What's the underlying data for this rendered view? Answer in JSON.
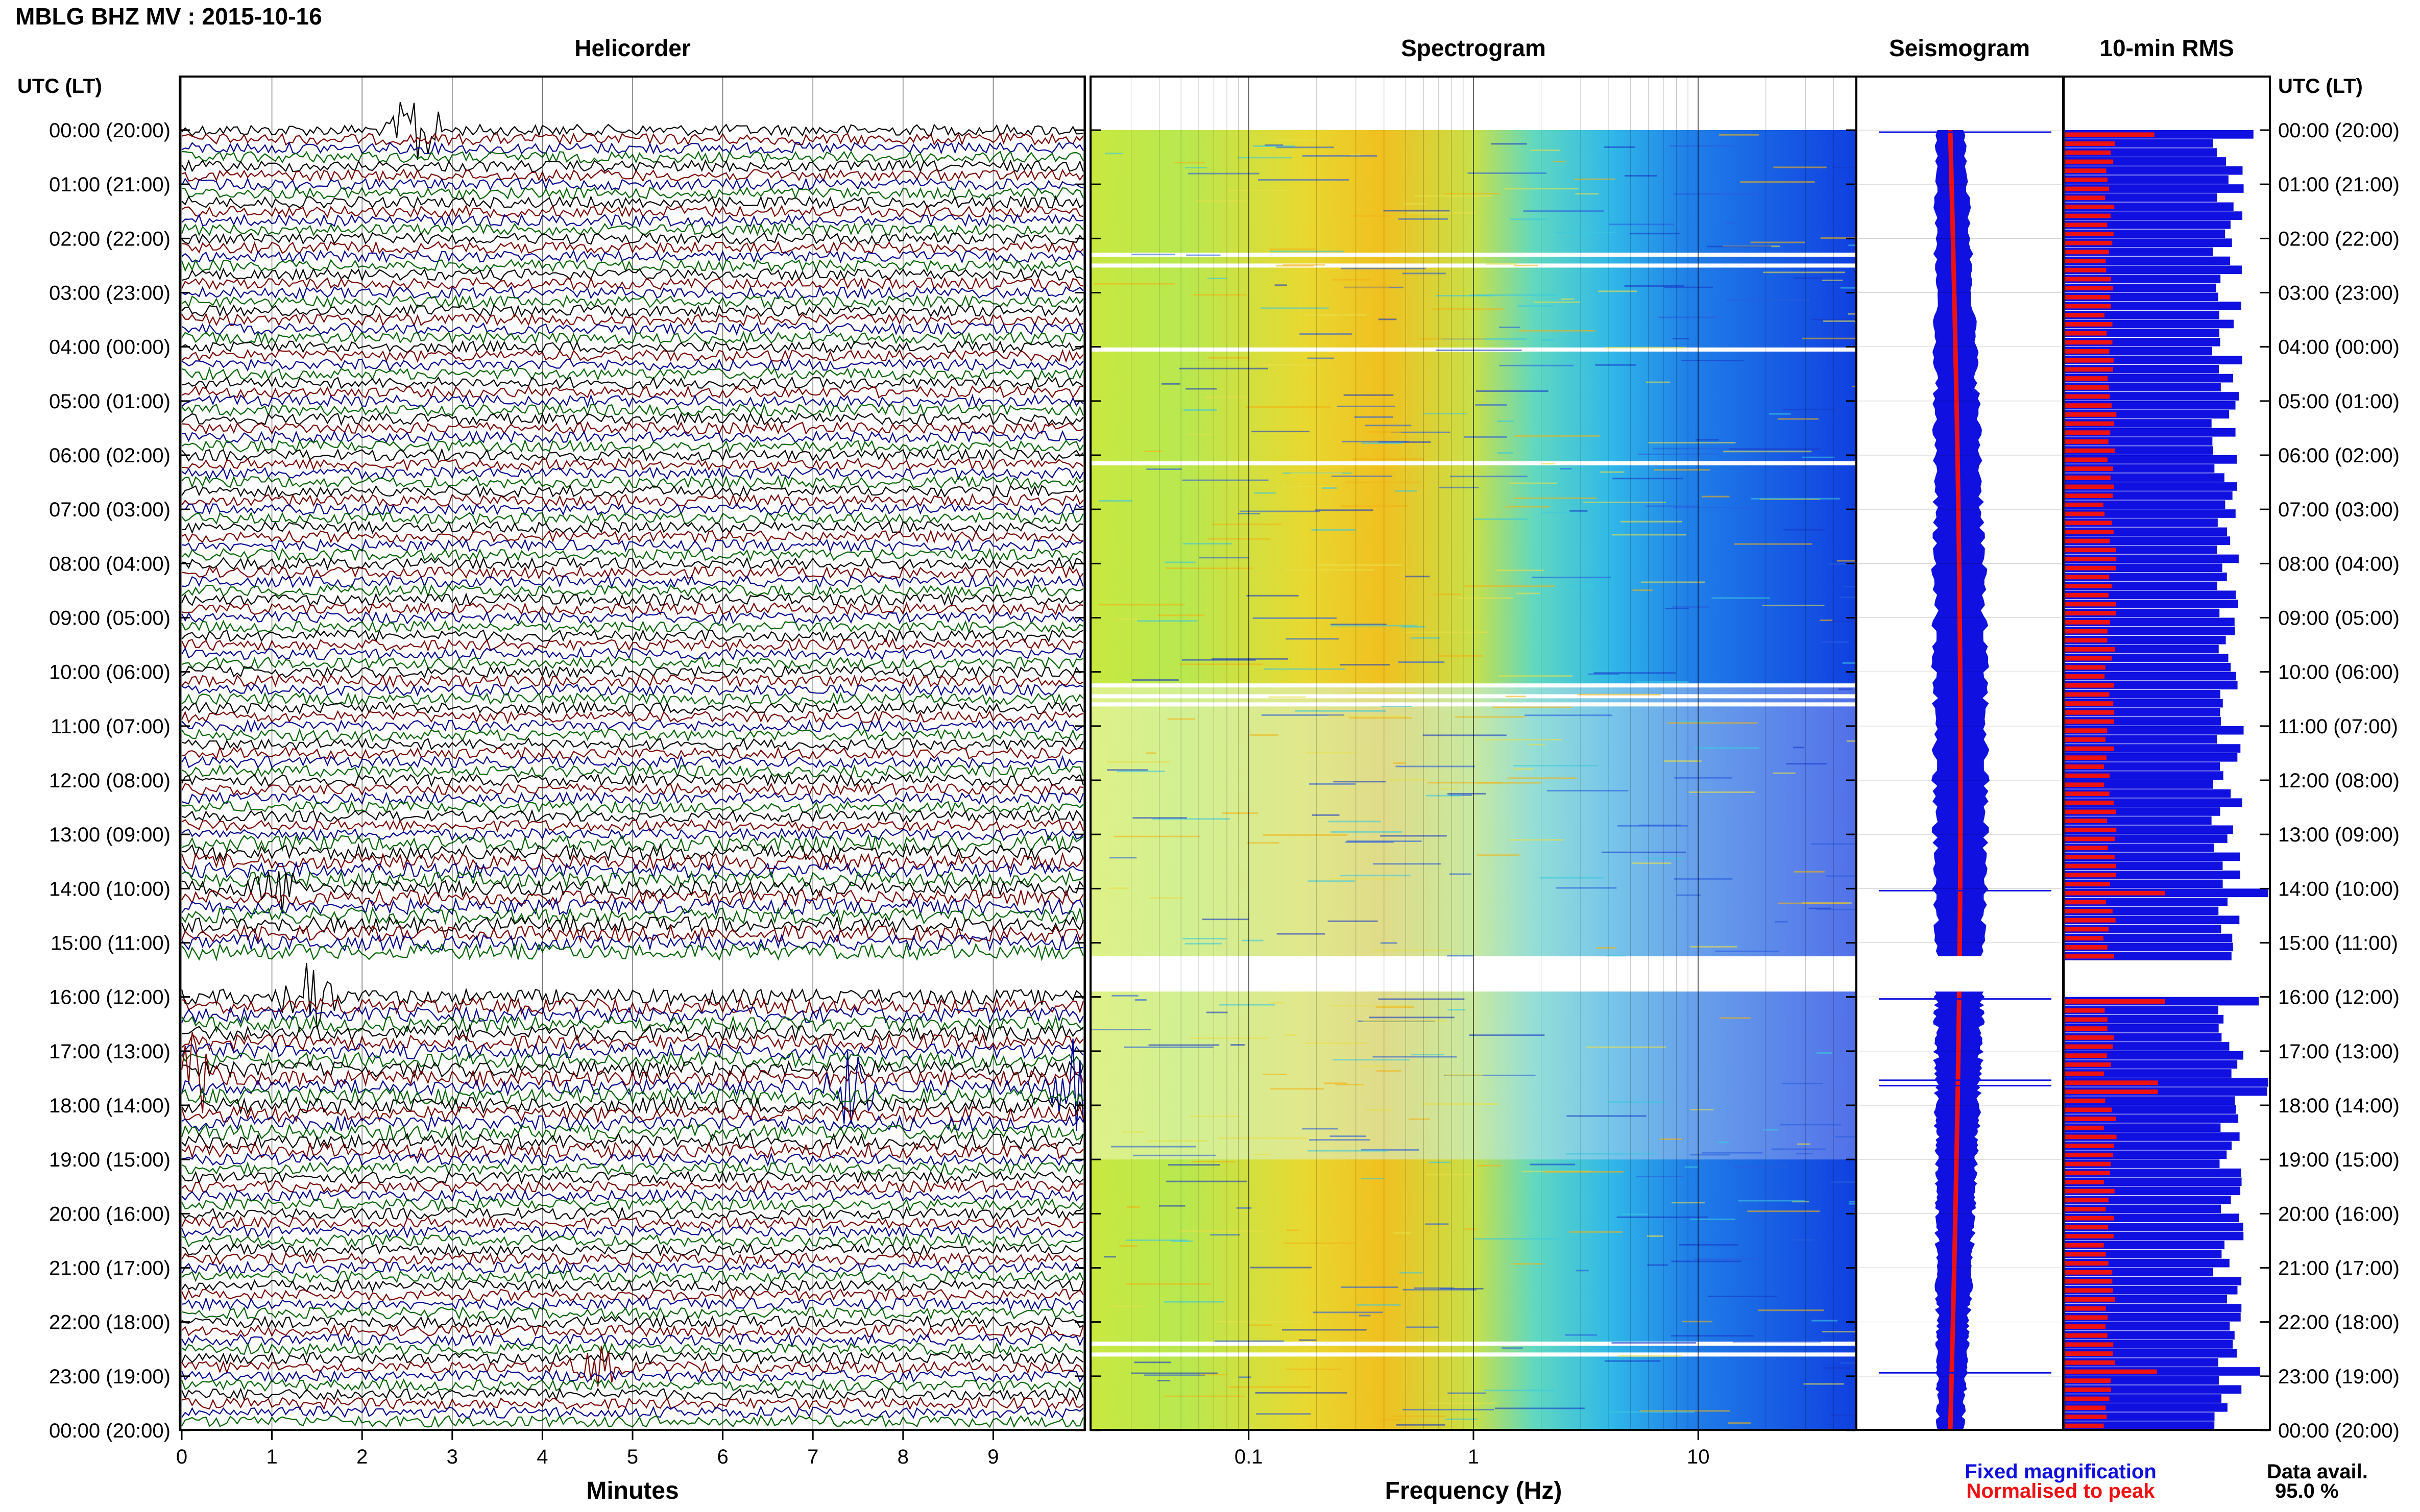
{
  "page": {
    "title": "MBLG BHZ MV : 2015-10-16",
    "utc_label": "UTC (LT)",
    "data_avail_label": "Data avail.",
    "data_avail_value": "95.0 %"
  },
  "panels": {
    "helicorder": "Helicorder",
    "spectrogram": "Spectrogram",
    "seismogram": "Seismogram",
    "rms": "10-min RMS"
  },
  "axes": {
    "minutes_label": "Minutes",
    "frequency_label": "Frequency (Hz)",
    "minute_ticks": [
      "0",
      "1",
      "2",
      "3",
      "4",
      "5",
      "6",
      "7",
      "8",
      "9"
    ],
    "frequency_ticks": [
      "0.1",
      "1",
      "10"
    ],
    "time_labels": [
      "00:00 (20:00)",
      "01:00 (21:00)",
      "02:00 (22:00)",
      "03:00 (23:00)",
      "04:00 (00:00)",
      "05:00 (01:00)",
      "06:00 (02:00)",
      "07:00 (03:00)",
      "08:00 (04:00)",
      "09:00 (05:00)",
      "10:00 (06:00)",
      "11:00 (07:00)",
      "12:00 (08:00)",
      "13:00 (09:00)",
      "14:00 (10:00)",
      "15:00 (11:00)",
      "16:00 (12:00)",
      "17:00 (13:00)",
      "18:00 (14:00)",
      "19:00 (15:00)",
      "20:00 (16:00)",
      "21:00 (17:00)",
      "22:00 (18:00)",
      "23:00 (19:00)",
      "00:00 (20:00)"
    ]
  },
  "legend": {
    "fixed": "Fixed magnification",
    "fixed_color": "#1010e0",
    "normalised": "Normalised to peak",
    "normalised_color": "#ee1111"
  },
  "colors": {
    "trace_cycle": [
      "#000000",
      "#7a0000",
      "#000090",
      "#006400"
    ],
    "rms_fixed": "#1010e0",
    "rms_normalised": "#ee1111"
  },
  "chart_data": [
    {
      "type": "line",
      "name": "helicorder",
      "xlabel": "Minutes",
      "xlim": [
        0,
        10
      ],
      "rows_per_hour": 6,
      "hours": 24,
      "data_gap_hours": [
        15.25,
        15.9
      ],
      "events": [
        {
          "hour": 0.0,
          "minute": 2.6,
          "amplitude": "large"
        },
        {
          "hour": 14.0,
          "minute": 1.1,
          "amplitude": "moderate"
        },
        {
          "hour": 16.0,
          "minute": 1.4,
          "amplitude": "large"
        },
        {
          "hour": 17.5,
          "minute": 0.1,
          "amplitude": "large"
        },
        {
          "hour": 17.6,
          "minute": 7.4,
          "amplitude": "large"
        },
        {
          "hour": 17.6,
          "minute": 9.9,
          "amplitude": "large"
        },
        {
          "hour": 22.9,
          "minute": 4.6,
          "amplitude": "moderate"
        }
      ]
    },
    {
      "type": "heatmap",
      "name": "spectrogram",
      "xlabel": "Frequency (Hz)",
      "xscale": "log",
      "xlim": [
        0.02,
        50
      ],
      "peak_energy_hz": [
        0.2,
        0.6
      ],
      "colormap": [
        "#2030d0",
        "#20b0e0",
        "#60e0c0",
        "#d8ee40",
        "#f0c010"
      ]
    },
    {
      "type": "line",
      "name": "seismogram",
      "series": [
        {
          "name": "Fixed magnification",
          "color": "#1010e0"
        },
        {
          "name": "Normalised to peak",
          "color": "#ee1111"
        }
      ]
    },
    {
      "type": "bar",
      "name": "10-min RMS",
      "orientation": "horizontal",
      "series": [
        {
          "name": "Fixed magnification",
          "color": "#1010e0",
          "typical_fraction": 0.8
        },
        {
          "name": "Normalised to peak",
          "color": "#ee1111",
          "typical_fraction": 0.22
        }
      ],
      "gap_hours": [
        15.25,
        15.9
      ]
    }
  ]
}
